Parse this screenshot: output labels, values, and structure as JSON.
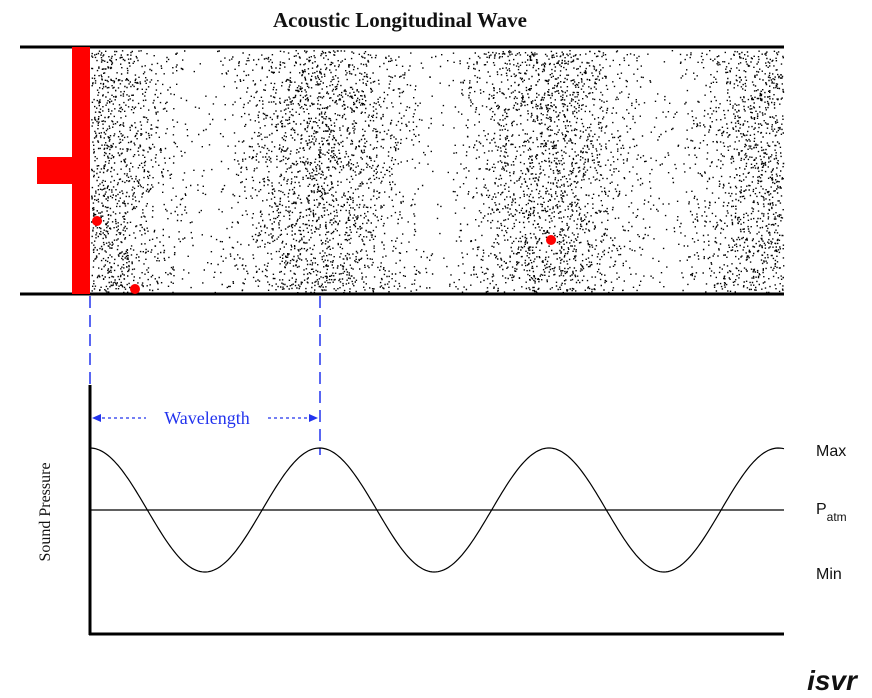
{
  "title": "Acoustic Longitudinal Wave",
  "graph": {
    "wavelength_label": "Wavelength",
    "y_label": "Sound Pressure",
    "max_label": "Max",
    "patm_label": "P",
    "patm_subscript": "atm",
    "min_label": "Min"
  },
  "logo": "isvr"
}
